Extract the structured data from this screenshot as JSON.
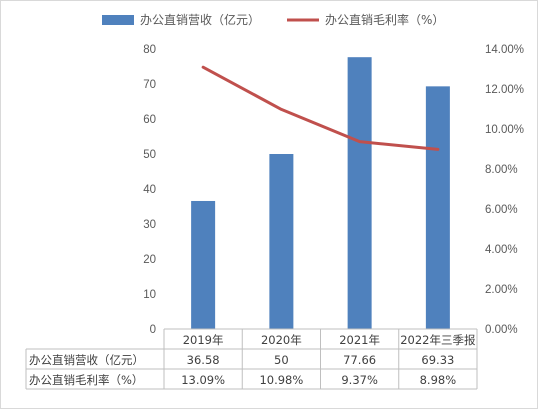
{
  "chart_data": {
    "type": "bar",
    "categories": [
      "2019年",
      "2020年",
      "2021年",
      "2022年三季报"
    ],
    "series": [
      {
        "name": "办公直销营收（亿元）",
        "type": "bar",
        "axis": "left",
        "color": "#4f81bd",
        "values": [
          36.58,
          50,
          77.66,
          69.33
        ],
        "labels": [
          "36.58",
          "50",
          "77.66",
          "69.33"
        ]
      },
      {
        "name": "办公直销毛利率（%）",
        "type": "line",
        "axis": "right",
        "color": "#c0504d",
        "values": [
          13.09,
          10.98,
          9.37,
          8.98
        ],
        "labels": [
          "13.09%",
          "10.98%",
          "9.37%",
          "8.98%"
        ]
      }
    ],
    "y_left": {
      "ylim": [
        0,
        80
      ],
      "ticks": [
        "0",
        "10",
        "20",
        "30",
        "40",
        "50",
        "60",
        "70",
        "80"
      ]
    },
    "y_right": {
      "ylim": [
        0,
        14
      ],
      "ticks": [
        "0.00%",
        "2.00%",
        "4.00%",
        "6.00%",
        "8.00%",
        "10.00%",
        "12.00%",
        "14.00%"
      ]
    },
    "legend": "top",
    "grid": false,
    "data_table": true
  }
}
